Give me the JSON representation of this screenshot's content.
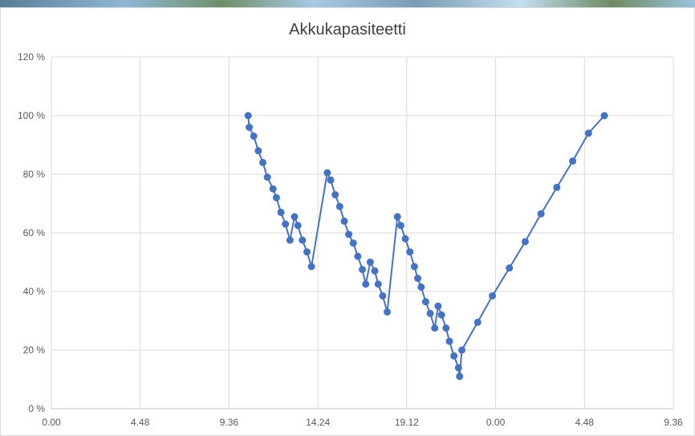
{
  "chart_data": {
    "type": "scatter",
    "title": "Akkukapasiteetti",
    "xlabel": "",
    "ylabel": "",
    "x_tick_labels": [
      "0.00",
      "4.48",
      "9.36",
      "14.24",
      "19.12",
      "0.00",
      "4.48",
      "9.36"
    ],
    "y_tick_labels": [
      "0 %",
      "20 %",
      "40 %",
      "60 %",
      "80 %",
      "100 %",
      "120 %"
    ],
    "ylim": [
      0,
      120
    ],
    "grid": true,
    "legend": "none",
    "series_color": "#4472c4",
    "series": [
      {
        "values": [
          {
            "x": 8.7,
            "y": 100
          },
          {
            "x": 8.75,
            "y": 96
          },
          {
            "x": 8.95,
            "y": 93
          },
          {
            "x": 9.15,
            "y": 88
          },
          {
            "x": 9.35,
            "y": 84
          },
          {
            "x": 9.55,
            "y": 79
          },
          {
            "x": 9.8,
            "y": 75
          },
          {
            "x": 9.95,
            "y": 72
          },
          {
            "x": 10.15,
            "y": 67
          },
          {
            "x": 10.35,
            "y": 63
          },
          {
            "x": 10.55,
            "y": 57.5
          },
          {
            "x": 10.75,
            "y": 65.5
          },
          {
            "x": 10.9,
            "y": 62.5
          },
          {
            "x": 11.1,
            "y": 57.5
          },
          {
            "x": 11.3,
            "y": 53.5
          },
          {
            "x": 11.5,
            "y": 48.5
          },
          {
            "x": 12.2,
            "y": 80.5
          },
          {
            "x": 12.35,
            "y": 78
          },
          {
            "x": 12.55,
            "y": 73
          },
          {
            "x": 12.75,
            "y": 69
          },
          {
            "x": 12.95,
            "y": 64
          },
          {
            "x": 13.15,
            "y": 59.5
          },
          {
            "x": 13.35,
            "y": 56.5
          },
          {
            "x": 13.55,
            "y": 52
          },
          {
            "x": 13.75,
            "y": 47.5
          },
          {
            "x": 13.9,
            "y": 42.5
          },
          {
            "x": 14.1,
            "y": 50
          },
          {
            "x": 14.3,
            "y": 47
          },
          {
            "x": 14.45,
            "y": 42.5
          },
          {
            "x": 14.65,
            "y": 38.5
          },
          {
            "x": 14.85,
            "y": 33
          },
          {
            "x": 15.3,
            "y": 65.5
          },
          {
            "x": 15.45,
            "y": 62.5
          },
          {
            "x": 15.65,
            "y": 58
          },
          {
            "x": 15.85,
            "y": 53.5
          },
          {
            "x": 16.05,
            "y": 48.5
          },
          {
            "x": 16.2,
            "y": 44.5
          },
          {
            "x": 16.35,
            "y": 41.5
          },
          {
            "x": 16.55,
            "y": 36.5
          },
          {
            "x": 16.75,
            "y": 32.5
          },
          {
            "x": 16.95,
            "y": 27.5
          },
          {
            "x": 17.1,
            "y": 35
          },
          {
            "x": 17.25,
            "y": 32
          },
          {
            "x": 17.45,
            "y": 27.5
          },
          {
            "x": 17.6,
            "y": 23
          },
          {
            "x": 17.8,
            "y": 18
          },
          {
            "x": 18.0,
            "y": 14
          },
          {
            "x": 18.05,
            "y": 11
          },
          {
            "x": 18.15,
            "y": 20
          },
          {
            "x": 18.85,
            "y": 29.5
          },
          {
            "x": 19.5,
            "y": 38.5
          },
          {
            "x": 20.25,
            "y": 48
          },
          {
            "x": 20.95,
            "y": 57
          },
          {
            "x": 21.65,
            "y": 66.5
          },
          {
            "x": 22.35,
            "y": 75.5
          },
          {
            "x": 23.05,
            "y": 84.5
          },
          {
            "x": 23.75,
            "y": 94
          },
          {
            "x": 24.45,
            "y": 100
          }
        ]
      }
    ]
  }
}
